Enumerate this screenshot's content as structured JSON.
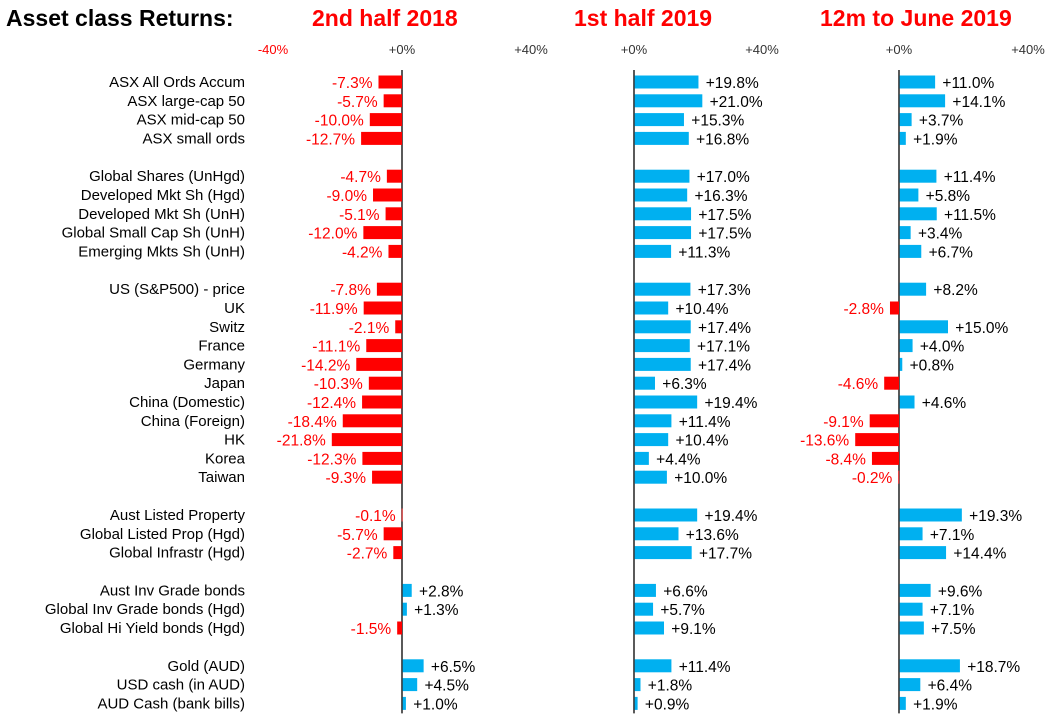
{
  "chart_data": {
    "type": "bar",
    "orientation": "horizontal",
    "title": "Asset class Returns:",
    "colors": {
      "positive": "#00b0f0",
      "negative": "#ff0000",
      "title": "#ff0000"
    },
    "categories": [
      "ASX All Ords Accum",
      "ASX large-cap 50",
      "ASX mid-cap 50",
      "ASX small ords",
      "Global Shares (UnHgd)",
      "Developed Mkt Sh (Hgd)",
      "Developed Mkt Sh (UnH)",
      "Global Small Cap Sh (UnH)",
      "Emerging Mkts Sh (UnH)",
      "US (S&P500) - price",
      "UK",
      "Switz",
      "France",
      "Germany",
      "Japan",
      "China (Domestic)",
      "China (Foreign)",
      "HK",
      "Korea",
      "Taiwan",
      "Aust Listed Property",
      "Global Listed Prop (Hgd)",
      "Global Infrastr (Hgd)",
      "Aust Inv Grade bonds",
      "Global Inv Grade bonds (Hgd)",
      "Global Hi Yield bonds (Hgd)",
      "Gold (AUD)",
      "USD cash (in AUD)",
      "AUD Cash (bank bills)"
    ],
    "groups": [
      4,
      5,
      11,
      3,
      3,
      3
    ],
    "series": [
      {
        "name": "2nd half 2018",
        "ticks": [
          "-40%",
          "+0%",
          "+40%"
        ],
        "xlim": [
          -40,
          40
        ],
        "values": [
          -7.3,
          -5.7,
          -10.0,
          -12.7,
          -4.7,
          -9.0,
          -5.1,
          -12.0,
          -4.2,
          -7.8,
          -11.9,
          -2.1,
          -11.1,
          -14.2,
          -10.3,
          -12.4,
          -18.4,
          -21.8,
          -12.3,
          -9.3,
          -0.1,
          -5.7,
          -2.7,
          2.8,
          1.3,
          -1.5,
          6.5,
          4.5,
          1.0
        ]
      },
      {
        "name": "1st half 2019",
        "ticks": [
          "+0%",
          "+40%"
        ],
        "xlim": [
          0,
          40
        ],
        "values": [
          19.8,
          21.0,
          15.3,
          16.8,
          17.0,
          16.3,
          17.5,
          17.5,
          11.3,
          17.3,
          10.4,
          17.4,
          17.1,
          17.4,
          6.3,
          19.4,
          11.4,
          10.4,
          4.4,
          10.0,
          19.4,
          13.6,
          17.7,
          6.6,
          5.7,
          9.1,
          11.4,
          1.8,
          0.9
        ]
      },
      {
        "name": "12m to June 2019",
        "ticks": [
          "+0%",
          "+40%"
        ],
        "xlim": [
          0,
          40
        ],
        "values": [
          11.0,
          14.1,
          3.7,
          1.9,
          11.4,
          5.8,
          11.5,
          3.4,
          6.7,
          8.2,
          -2.8,
          15.0,
          4.0,
          0.8,
          -4.6,
          4.6,
          -9.1,
          -13.6,
          -8.4,
          -0.2,
          19.3,
          7.1,
          14.4,
          9.6,
          7.1,
          7.5,
          18.7,
          6.4,
          1.9
        ]
      }
    ],
    "grid": false,
    "legend": "none"
  }
}
